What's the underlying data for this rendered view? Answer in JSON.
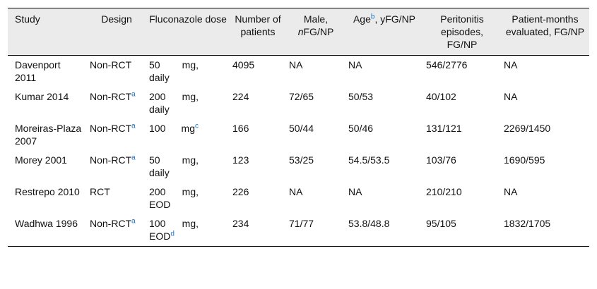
{
  "headers": {
    "study": "Study",
    "design": "Design",
    "dose": "Fluconazole dose",
    "patients": "Number of patients",
    "male_main": "Male,",
    "male_n": "n",
    "male_rest": "FG/NP",
    "age_main": "Age",
    "age_sup": "b",
    "age_rest": ", yFG/NP",
    "peritonitis": "Peritonitis episodes, FG/NP",
    "months": "Patient-months evaluated, FG/NP"
  },
  "rows": [
    {
      "study": "Davenport 2011",
      "design": "Non-RCT",
      "design_sup": "",
      "dose_a": "50",
      "dose_b": "mg,",
      "dose_c": "daily",
      "dose_sup": "",
      "patients": "4095",
      "male": "NA",
      "age": "NA",
      "peritonitis": "546/2776",
      "months": "NA"
    },
    {
      "study": "Kumar 2014",
      "design": "Non-RCT",
      "design_sup": "a",
      "dose_a": "200",
      "dose_b": "mg,",
      "dose_c": "daily",
      "dose_sup": "",
      "patients": "224",
      "male": "72/65",
      "age": "50/53",
      "peritonitis": "40/102",
      "months": "NA"
    },
    {
      "study": "Moreiras-Plaza 2007",
      "design": "Non-RCT",
      "design_sup": "a",
      "dose_a": "100",
      "dose_b": "mg",
      "dose_c": "",
      "dose_sup": "c",
      "patients": "166",
      "male": "50/44",
      "age": "50/46",
      "peritonitis": "131/121",
      "months": "2269/1450"
    },
    {
      "study": "Morey 2001",
      "design": "Non-RCT",
      "design_sup": "a",
      "dose_a": "50",
      "dose_b": "mg,",
      "dose_c": "daily",
      "dose_sup": "",
      "patients": "123",
      "male": "53/25",
      "age": "54.5/53.5",
      "peritonitis": "103/76",
      "months": "1690/595"
    },
    {
      "study": "Restrepo 2010",
      "design": "RCT",
      "design_sup": "",
      "dose_a": "200",
      "dose_b": "mg,",
      "dose_c": "EOD",
      "dose_sup": "",
      "patients": "226",
      "male": "NA",
      "age": "NA",
      "peritonitis": "210/210",
      "months": "NA"
    },
    {
      "study": "Wadhwa 1996",
      "design": "Non-RCT",
      "design_sup": "a",
      "dose_a": "100",
      "dose_b": "mg,",
      "dose_c": "EOD",
      "dose_sup": "d",
      "patients": "234",
      "male": "71/77",
      "age": "53.8/48.8",
      "peritonitis": "95/105",
      "months": "1832/1705"
    }
  ]
}
